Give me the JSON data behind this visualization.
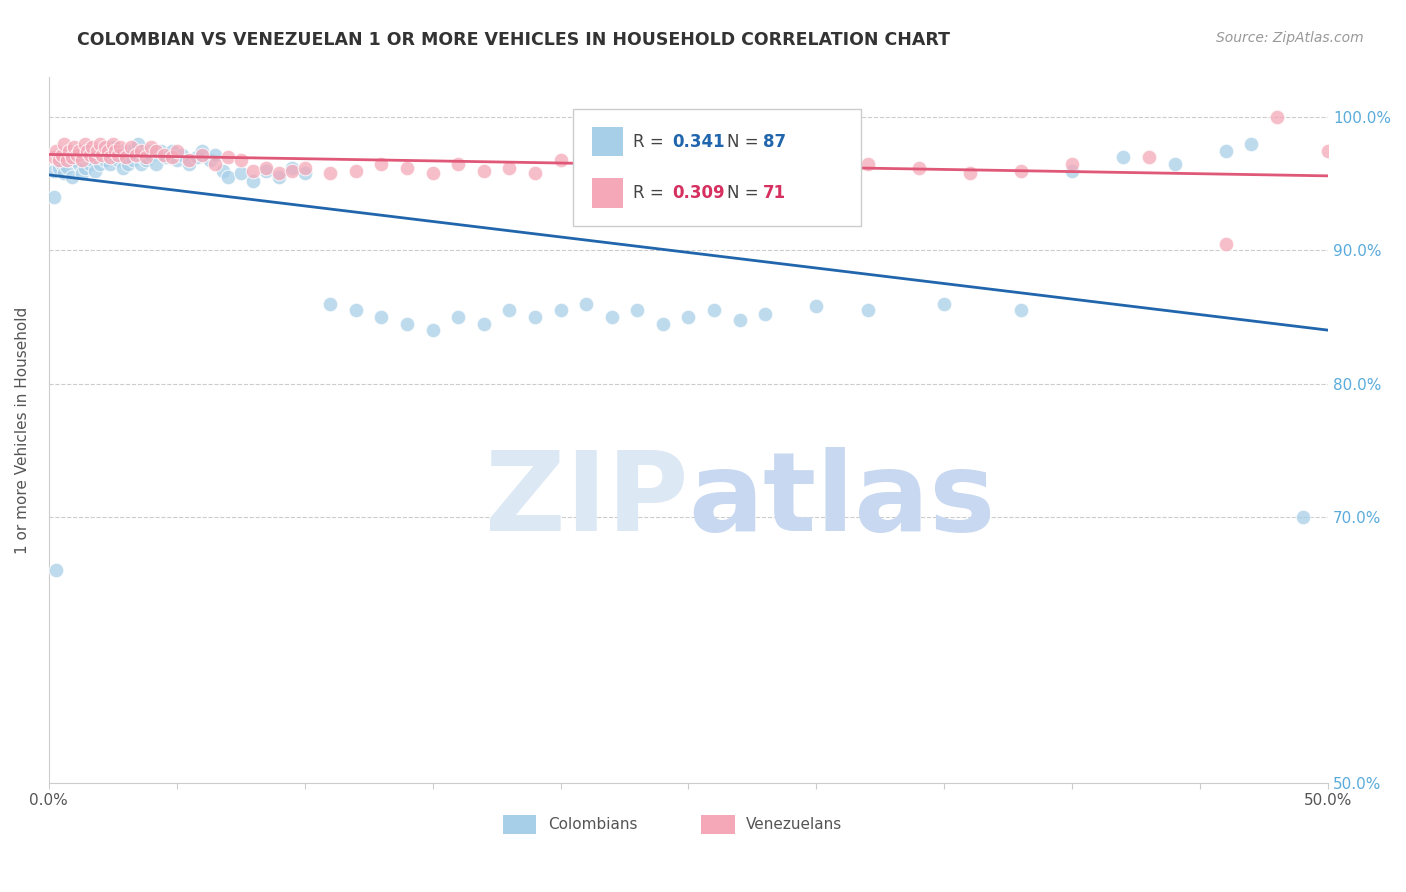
{
  "title": "COLOMBIAN VS VENEZUELAN 1 OR MORE VEHICLES IN HOUSEHOLD CORRELATION CHART",
  "source": "Source: ZipAtlas.com",
  "ylabel": "1 or more Vehicles in Household",
  "x_min": 0.0,
  "x_max": 0.5,
  "y_min": 0.5,
  "y_max": 1.03,
  "colombian_R": 0.341,
  "colombian_N": 87,
  "venezuelan_R": 0.309,
  "venezuelan_N": 71,
  "blue_color": "#a8cfe8",
  "pink_color": "#f4a8b8",
  "blue_line_color": "#2166ac",
  "pink_line_color": "#e05878",
  "blue_label_color": "#2166ac",
  "pink_label_color": "#d63060",
  "right_tick_color": "#5aabdc",
  "watermark_zip_color": "#dde8f5",
  "watermark_atlas_color": "#c8d8f0",
  "colombians_x": [
    0.002,
    0.004,
    0.005,
    0.006,
    0.007,
    0.008,
    0.009,
    0.01,
    0.011,
    0.012,
    0.013,
    0.014,
    0.015,
    0.016,
    0.017,
    0.018,
    0.019,
    0.02,
    0.021,
    0.022,
    0.023,
    0.024,
    0.025,
    0.026,
    0.027,
    0.028,
    0.029,
    0.03,
    0.031,
    0.032,
    0.033,
    0.034,
    0.035,
    0.036,
    0.037,
    0.038,
    0.039,
    0.04,
    0.042,
    0.044,
    0.046,
    0.048,
    0.05,
    0.052,
    0.055,
    0.058,
    0.06,
    0.063,
    0.065,
    0.068,
    0.07,
    0.075,
    0.08,
    0.085,
    0.09,
    0.095,
    0.1,
    0.11,
    0.12,
    0.13,
    0.14,
    0.15,
    0.16,
    0.17,
    0.18,
    0.19,
    0.2,
    0.21,
    0.22,
    0.23,
    0.24,
    0.25,
    0.26,
    0.27,
    0.28,
    0.3,
    0.32,
    0.35,
    0.38,
    0.4,
    0.42,
    0.44,
    0.46,
    0.47,
    0.49,
    0.003,
    0.002
  ],
  "colombians_y": [
    0.96,
    0.962,
    0.965,
    0.958,
    0.963,
    0.97,
    0.955,
    0.968,
    0.972,
    0.965,
    0.958,
    0.962,
    0.97,
    0.965,
    0.968,
    0.96,
    0.975,
    0.965,
    0.97,
    0.968,
    0.972,
    0.965,
    0.978,
    0.97,
    0.968,
    0.975,
    0.962,
    0.97,
    0.965,
    0.975,
    0.968,
    0.972,
    0.98,
    0.965,
    0.97,
    0.968,
    0.975,
    0.972,
    0.965,
    0.975,
    0.97,
    0.975,
    0.968,
    0.972,
    0.965,
    0.97,
    0.975,
    0.968,
    0.972,
    0.96,
    0.955,
    0.958,
    0.952,
    0.96,
    0.955,
    0.962,
    0.958,
    0.86,
    0.855,
    0.85,
    0.845,
    0.84,
    0.85,
    0.845,
    0.855,
    0.85,
    0.855,
    0.86,
    0.85,
    0.855,
    0.845,
    0.85,
    0.855,
    0.848,
    0.852,
    0.858,
    0.855,
    0.86,
    0.855,
    0.96,
    0.97,
    0.965,
    0.975,
    0.98,
    0.7,
    0.66,
    0.94
  ],
  "venezuelans_x": [
    0.002,
    0.003,
    0.004,
    0.005,
    0.006,
    0.007,
    0.008,
    0.009,
    0.01,
    0.011,
    0.012,
    0.013,
    0.014,
    0.015,
    0.016,
    0.017,
    0.018,
    0.019,
    0.02,
    0.021,
    0.022,
    0.023,
    0.024,
    0.025,
    0.026,
    0.027,
    0.028,
    0.03,
    0.032,
    0.034,
    0.036,
    0.038,
    0.04,
    0.042,
    0.045,
    0.048,
    0.05,
    0.055,
    0.06,
    0.065,
    0.07,
    0.075,
    0.08,
    0.085,
    0.09,
    0.095,
    0.1,
    0.11,
    0.12,
    0.13,
    0.14,
    0.15,
    0.16,
    0.17,
    0.18,
    0.19,
    0.2,
    0.22,
    0.24,
    0.26,
    0.28,
    0.3,
    0.32,
    0.34,
    0.36,
    0.38,
    0.4,
    0.43,
    0.46,
    0.48,
    0.5
  ],
  "venezuelans_y": [
    0.97,
    0.975,
    0.968,
    0.972,
    0.98,
    0.968,
    0.975,
    0.97,
    0.978,
    0.972,
    0.975,
    0.968,
    0.98,
    0.975,
    0.972,
    0.978,
    0.97,
    0.975,
    0.98,
    0.972,
    0.978,
    0.975,
    0.97,
    0.98,
    0.975,
    0.972,
    0.978,
    0.97,
    0.978,
    0.972,
    0.975,
    0.97,
    0.978,
    0.975,
    0.972,
    0.97,
    0.975,
    0.968,
    0.972,
    0.965,
    0.97,
    0.968,
    0.96,
    0.962,
    0.958,
    0.96,
    0.962,
    0.958,
    0.96,
    0.965,
    0.962,
    0.958,
    0.965,
    0.96,
    0.962,
    0.958,
    0.968,
    0.965,
    0.96,
    0.962,
    0.958,
    0.96,
    0.965,
    0.962,
    0.958,
    0.96,
    0.965,
    0.97,
    0.905,
    1.0,
    0.975
  ]
}
